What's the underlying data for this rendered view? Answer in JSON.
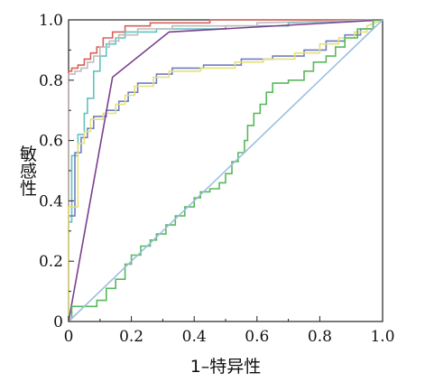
{
  "chart_data": {
    "type": "line",
    "title": "",
    "xlabel": "1–特异性",
    "ylabel": "敏感性",
    "xlim": [
      0,
      1
    ],
    "ylim": [
      0,
      1
    ],
    "x_ticks": [
      "0",
      "0.2",
      "0.4",
      "0.6",
      "0.8",
      "1.0"
    ],
    "y_ticks": [
      "0",
      "0.2",
      "0.4",
      "0.6",
      "0.8",
      "1.0"
    ],
    "grid": false,
    "legend": "none",
    "series": [
      {
        "color": "#d9605a",
        "points": [
          [
            0,
            0
          ],
          [
            0,
            0.83
          ],
          [
            0.01,
            0.83
          ],
          [
            0.01,
            0.84
          ],
          [
            0.03,
            0.84
          ],
          [
            0.03,
            0.85
          ],
          [
            0.05,
            0.85
          ],
          [
            0.05,
            0.87
          ],
          [
            0.07,
            0.87
          ],
          [
            0.07,
            0.89
          ],
          [
            0.09,
            0.89
          ],
          [
            0.09,
            0.91
          ],
          [
            0.11,
            0.91
          ],
          [
            0.11,
            0.94
          ],
          [
            0.14,
            0.94
          ],
          [
            0.14,
            0.96
          ],
          [
            0.18,
            0.96
          ],
          [
            0.18,
            0.98
          ],
          [
            0.26,
            0.98
          ],
          [
            0.26,
            0.99
          ],
          [
            0.45,
            0.99
          ],
          [
            0.45,
            1.0
          ],
          [
            1.0,
            1.0
          ]
        ]
      },
      {
        "color": "#5fc3bf",
        "points": [
          [
            0,
            0
          ],
          [
            0,
            0.33
          ],
          [
            0.01,
            0.33
          ],
          [
            0.01,
            0.55
          ],
          [
            0.03,
            0.55
          ],
          [
            0.03,
            0.62
          ],
          [
            0.05,
            0.62
          ],
          [
            0.05,
            0.69
          ],
          [
            0.06,
            0.69
          ],
          [
            0.06,
            0.74
          ],
          [
            0.08,
            0.74
          ],
          [
            0.08,
            0.83
          ],
          [
            0.1,
            0.83
          ],
          [
            0.1,
            0.88
          ],
          [
            0.12,
            0.88
          ],
          [
            0.12,
            0.92
          ],
          [
            0.15,
            0.92
          ],
          [
            0.15,
            0.94
          ],
          [
            0.18,
            0.94
          ],
          [
            0.18,
            0.96
          ],
          [
            0.28,
            0.96
          ],
          [
            0.28,
            0.97
          ],
          [
            0.5,
            0.97
          ],
          [
            0.5,
            0.98
          ],
          [
            0.7,
            0.98
          ],
          [
            0.7,
            0.99
          ],
          [
            1.0,
            1.0
          ]
        ]
      },
      {
        "color": "#bdbdbd",
        "points": [
          [
            0,
            0
          ],
          [
            0,
            0.82
          ],
          [
            0.02,
            0.82
          ],
          [
            0.02,
            0.83
          ],
          [
            0.04,
            0.83
          ],
          [
            0.04,
            0.84
          ],
          [
            0.06,
            0.84
          ],
          [
            0.06,
            0.86
          ],
          [
            0.08,
            0.86
          ],
          [
            0.08,
            0.88
          ],
          [
            0.1,
            0.88
          ],
          [
            0.1,
            0.91
          ],
          [
            0.13,
            0.91
          ],
          [
            0.13,
            0.93
          ],
          [
            0.16,
            0.93
          ],
          [
            0.16,
            0.95
          ],
          [
            0.22,
            0.95
          ],
          [
            0.22,
            0.97
          ],
          [
            0.33,
            0.97
          ],
          [
            0.33,
            0.98
          ],
          [
            0.6,
            0.98
          ],
          [
            0.6,
            0.99
          ],
          [
            1.0,
            1.0
          ]
        ]
      },
      {
        "color": "#6e7fbf",
        "points": [
          [
            0,
            0
          ],
          [
            0,
            0.35
          ],
          [
            0.02,
            0.35
          ],
          [
            0.02,
            0.56
          ],
          [
            0.04,
            0.56
          ],
          [
            0.04,
            0.61
          ],
          [
            0.06,
            0.61
          ],
          [
            0.06,
            0.64
          ],
          [
            0.08,
            0.64
          ],
          [
            0.08,
            0.68
          ],
          [
            0.12,
            0.68
          ],
          [
            0.12,
            0.7
          ],
          [
            0.16,
            0.7
          ],
          [
            0.16,
            0.73
          ],
          [
            0.19,
            0.73
          ],
          [
            0.19,
            0.76
          ],
          [
            0.22,
            0.76
          ],
          [
            0.22,
            0.79
          ],
          [
            0.28,
            0.79
          ],
          [
            0.28,
            0.82
          ],
          [
            0.33,
            0.82
          ],
          [
            0.33,
            0.84
          ],
          [
            0.43,
            0.84
          ],
          [
            0.43,
            0.85
          ],
          [
            0.55,
            0.85
          ],
          [
            0.55,
            0.87
          ],
          [
            0.65,
            0.87
          ],
          [
            0.65,
            0.88
          ],
          [
            0.75,
            0.88
          ],
          [
            0.75,
            0.9
          ],
          [
            0.82,
            0.9
          ],
          [
            0.82,
            0.93
          ],
          [
            0.88,
            0.93
          ],
          [
            0.88,
            0.95
          ],
          [
            0.93,
            0.95
          ],
          [
            0.93,
            0.97
          ],
          [
            0.97,
            0.97
          ],
          [
            0.97,
            1.0
          ],
          [
            1.0,
            1.0
          ]
        ]
      },
      {
        "color": "#e6e07a",
        "points": [
          [
            0,
            0
          ],
          [
            0,
            0.38
          ],
          [
            0.03,
            0.38
          ],
          [
            0.03,
            0.59
          ],
          [
            0.05,
            0.59
          ],
          [
            0.05,
            0.63
          ],
          [
            0.07,
            0.63
          ],
          [
            0.07,
            0.67
          ],
          [
            0.11,
            0.67
          ],
          [
            0.11,
            0.69
          ],
          [
            0.15,
            0.69
          ],
          [
            0.15,
            0.72
          ],
          [
            0.18,
            0.72
          ],
          [
            0.18,
            0.75
          ],
          [
            0.21,
            0.75
          ],
          [
            0.21,
            0.78
          ],
          [
            0.27,
            0.78
          ],
          [
            0.27,
            0.81
          ],
          [
            0.32,
            0.81
          ],
          [
            0.32,
            0.83
          ],
          [
            0.42,
            0.83
          ],
          [
            0.42,
            0.84
          ],
          [
            0.53,
            0.84
          ],
          [
            0.53,
            0.86
          ],
          [
            0.62,
            0.86
          ],
          [
            0.62,
            0.87
          ],
          [
            0.72,
            0.87
          ],
          [
            0.72,
            0.89
          ],
          [
            0.8,
            0.89
          ],
          [
            0.8,
            0.92
          ],
          [
            0.86,
            0.92
          ],
          [
            0.86,
            0.94
          ],
          [
            0.91,
            0.94
          ],
          [
            0.91,
            0.96
          ],
          [
            0.95,
            0.96
          ],
          [
            0.95,
            0.98
          ],
          [
            1.0,
            1.0
          ]
        ]
      },
      {
        "color": "#7b3f8c",
        "points": [
          [
            0,
            0
          ],
          [
            0.14,
            0.81
          ],
          [
            0.32,
            0.96
          ],
          [
            1.0,
            1.0
          ]
        ]
      },
      {
        "color": "#58b85c",
        "points": [
          [
            0,
            0
          ],
          [
            0.01,
            0.01
          ],
          [
            0.01,
            0.05
          ],
          [
            0.09,
            0.05
          ],
          [
            0.09,
            0.07
          ],
          [
            0.12,
            0.07
          ],
          [
            0.12,
            0.11
          ],
          [
            0.15,
            0.11
          ],
          [
            0.15,
            0.14
          ],
          [
            0.18,
            0.14
          ],
          [
            0.18,
            0.19
          ],
          [
            0.2,
            0.19
          ],
          [
            0.2,
            0.22
          ],
          [
            0.23,
            0.22
          ],
          [
            0.23,
            0.25
          ],
          [
            0.26,
            0.25
          ],
          [
            0.26,
            0.27
          ],
          [
            0.28,
            0.27
          ],
          [
            0.28,
            0.29
          ],
          [
            0.31,
            0.29
          ],
          [
            0.31,
            0.32
          ],
          [
            0.34,
            0.32
          ],
          [
            0.34,
            0.35
          ],
          [
            0.37,
            0.35
          ],
          [
            0.37,
            0.38
          ],
          [
            0.4,
            0.38
          ],
          [
            0.4,
            0.41
          ],
          [
            0.42,
            0.41
          ],
          [
            0.42,
            0.43
          ],
          [
            0.45,
            0.43
          ],
          [
            0.45,
            0.44
          ],
          [
            0.48,
            0.44
          ],
          [
            0.48,
            0.46
          ],
          [
            0.5,
            0.46
          ],
          [
            0.5,
            0.49
          ],
          [
            0.52,
            0.49
          ],
          [
            0.52,
            0.53
          ],
          [
            0.54,
            0.53
          ],
          [
            0.54,
            0.56
          ],
          [
            0.56,
            0.56
          ],
          [
            0.56,
            0.6
          ],
          [
            0.57,
            0.6
          ],
          [
            0.57,
            0.65
          ],
          [
            0.59,
            0.65
          ],
          [
            0.59,
            0.69
          ],
          [
            0.61,
            0.69
          ],
          [
            0.61,
            0.72
          ],
          [
            0.63,
            0.72
          ],
          [
            0.63,
            0.76
          ],
          [
            0.65,
            0.76
          ],
          [
            0.65,
            0.79
          ],
          [
            0.7,
            0.79
          ],
          [
            0.7,
            0.8
          ],
          [
            0.75,
            0.8
          ],
          [
            0.75,
            0.83
          ],
          [
            0.78,
            0.83
          ],
          [
            0.78,
            0.86
          ],
          [
            0.82,
            0.86
          ],
          [
            0.82,
            0.88
          ],
          [
            0.85,
            0.88
          ],
          [
            0.85,
            0.91
          ],
          [
            0.88,
            0.91
          ],
          [
            0.88,
            0.94
          ],
          [
            0.92,
            0.94
          ],
          [
            0.92,
            0.97
          ],
          [
            0.97,
            0.97
          ],
          [
            0.97,
            1.0
          ],
          [
            1.0,
            1.0
          ]
        ]
      },
      {
        "color": "#9bbfe0",
        "points": [
          [
            0,
            0
          ],
          [
            1.0,
            1.0
          ]
        ]
      }
    ]
  }
}
